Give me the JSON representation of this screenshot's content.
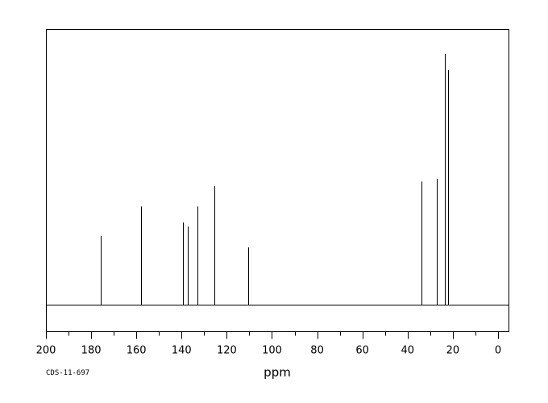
{
  "chart_data": {
    "type": "line",
    "subtype": "nmr-stick-spectrum",
    "title": "",
    "xlabel": "ppm",
    "ylabel": "",
    "x_reversed": true,
    "xlim": [
      200,
      -5
    ],
    "ylim": [
      0,
      100
    ],
    "x_ticks_major": [
      200,
      180,
      160,
      140,
      120,
      100,
      80,
      60,
      40,
      20,
      0
    ],
    "x_ticks_minor_step": 10,
    "grid": false,
    "legend": "none",
    "colors": {
      "line": "#000000",
      "frame": "#000000",
      "background": "#ffffff"
    },
    "peaks": [
      {
        "ppm": 175.9,
        "intensity": 27.5
      },
      {
        "ppm": 158.1,
        "intensity": 39.3
      },
      {
        "ppm": 139.4,
        "intensity": 32.9
      },
      {
        "ppm": 137.2,
        "intensity": 31.3
      },
      {
        "ppm": 132.8,
        "intensity": 39.3
      },
      {
        "ppm": 125.4,
        "intensity": 47.3
      },
      {
        "ppm": 110.6,
        "intensity": 23.0
      },
      {
        "ppm": 33.9,
        "intensity": 49.2
      },
      {
        "ppm": 27.0,
        "intensity": 50.2
      },
      {
        "ppm": 23.5,
        "intensity": 100
      },
      {
        "ppm": 22.0,
        "intensity": 93.6
      }
    ]
  },
  "footer": {
    "code": "CDS-11-697"
  }
}
